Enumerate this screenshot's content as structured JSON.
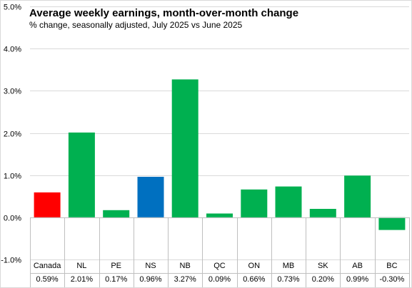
{
  "chart_data": {
    "type": "bar",
    "title": "Average weekly earnings, month-over-month  change",
    "subtitle": "% change, seasonally  adjusted, July 2025 vs June 2025",
    "categories": [
      "Canada",
      "NL",
      "PE",
      "NS",
      "NB",
      "QC",
      "ON",
      "MB",
      "SK",
      "AB",
      "BC"
    ],
    "values": [
      0.59,
      2.01,
      0.17,
      0.96,
      3.27,
      0.09,
      0.66,
      0.73,
      0.2,
      0.99,
      -0.3
    ],
    "value_labels": [
      "0.59%",
      "2.01%",
      "0.17%",
      "0.96%",
      "3.27%",
      "0.09%",
      "0.66%",
      "0.73%",
      "0.20%",
      "0.99%",
      "-0.30%"
    ],
    "ylim": [
      -1.0,
      5.0
    ],
    "yticks": [
      5.0,
      4.0,
      3.0,
      2.0,
      1.0,
      0.0,
      -1.0
    ],
    "ytick_labels": [
      "5.0%",
      "4.0%",
      "3.0%",
      "2.0%",
      "1.0%",
      "0.0%",
      "-1.0%"
    ],
    "xlabel": "",
    "ylabel": "",
    "grid": true,
    "legend": "none",
    "data_table": true,
    "colors": {
      "default": "#00b050",
      "Canada": "#ff0000",
      "NS": "#0070c0",
      "gridline": "#d9d9d9",
      "axis": "#bfbfbf",
      "text": "#000000"
    }
  }
}
